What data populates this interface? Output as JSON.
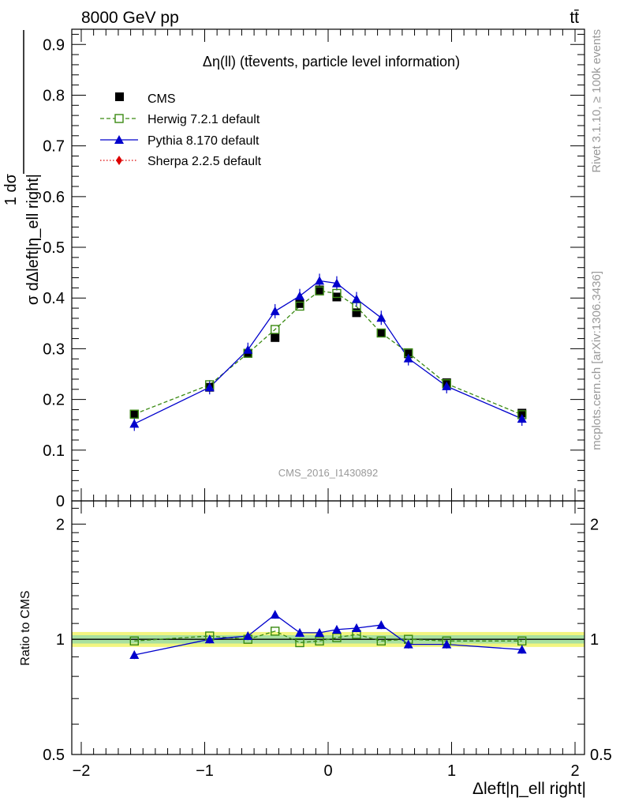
{
  "header": {
    "energy_label": "8000 GeV pp",
    "process_label": "tt̄",
    "panel_title": "Δη(ll) (tt̄events, particle level information)",
    "analysis_id": "CMS_2016_I1430892",
    "rivet_label": "Rivet 3.1.10, ≥ 100k events",
    "site_label": "mcplots.cern.ch [arXiv:1306.3436]"
  },
  "axes": {
    "ylabel_main_numerator": "1    dσ",
    "ylabel_main_denominator": "σ dΔleft|η_ell right|",
    "ylabel_ratio": "Ratio to CMS",
    "xlabel": "Δleft|η_ell right|"
  },
  "legend": {
    "placement": "top-left",
    "entries": [
      {
        "label": "CMS",
        "marker": "filled-square",
        "color": "#000000",
        "line": "none"
      },
      {
        "label": "Herwig 7.2.1 default",
        "marker": "open-square",
        "color": "#3a8a12",
        "line": "dashed"
      },
      {
        "label": "Pythia 8.170 default",
        "marker": "filled-triangle",
        "color": "#0000cc",
        "line": "solid"
      },
      {
        "label": "Sherpa 2.2.5 default",
        "marker": "filled-diamond",
        "color": "#dd0000",
        "line": "dotted"
      }
    ]
  },
  "chart_data": {
    "type": "line",
    "xlim": [
      -2,
      2
    ],
    "ylim_main": [
      0,
      0.93
    ],
    "ylim_ratio": [
      0.5,
      2.3
    ],
    "ratio_log_scale": true,
    "x_ticks": [
      "−2",
      "−1",
      "0",
      "1",
      "2"
    ],
    "y_ticks_main": [
      "0",
      "0.1",
      "0.2",
      "0.3",
      "0.4",
      "0.5",
      "0.6",
      "0.7",
      "0.8",
      "0.9"
    ],
    "y_ticks_ratio": [
      "0.5",
      "1",
      "2"
    ],
    "x": [
      -1.57,
      -0.96,
      -0.65,
      -0.43,
      -0.23,
      -0.07,
      0.07,
      0.23,
      0.43,
      0.65,
      0.96,
      1.57
    ],
    "series": [
      {
        "name": "CMS",
        "values": [
          0.171,
          0.224,
          0.291,
          0.322,
          0.389,
          0.416,
          0.402,
          0.371,
          0.331,
          0.29,
          0.233,
          0.173
        ]
      },
      {
        "name": "Herwig 7.2.1 default",
        "values": [
          0.171,
          0.229,
          0.291,
          0.338,
          0.384,
          0.414,
          0.409,
          0.383,
          0.331,
          0.292,
          0.231,
          0.17
        ]
      },
      {
        "name": "Pythia 8.170 default",
        "values": [
          0.152,
          0.224,
          0.298,
          0.374,
          0.404,
          0.434,
          0.429,
          0.398,
          0.361,
          0.281,
          0.226,
          0.162
        ]
      }
    ],
    "ratio_series": [
      {
        "name": "Herwig 7.2.1 default",
        "values": [
          0.99,
          1.02,
          1.0,
          1.05,
          0.98,
          0.99,
          1.01,
          1.03,
          0.99,
          1.0,
          0.99,
          0.99
        ]
      },
      {
        "name": "Pythia 8.170 default",
        "values": [
          0.91,
          1.0,
          1.02,
          1.16,
          1.04,
          1.04,
          1.06,
          1.07,
          1.09,
          0.97,
          0.97,
          0.94
        ]
      }
    ]
  }
}
